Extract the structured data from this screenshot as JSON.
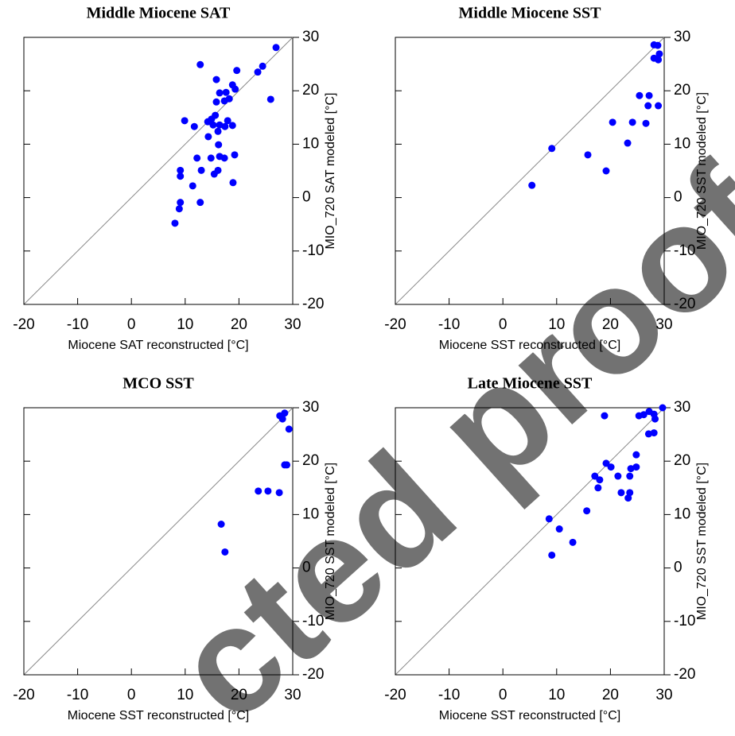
{
  "chart_data": [
    {
      "type": "scatter",
      "title": "Middle Miocene SAT",
      "xlabel": "Miocene SAT reconstructed [°C]",
      "ylabel": "MIO_720 SAT modeled [°C]",
      "color": "#0000ff",
      "diagonal": true,
      "xlim": [
        -20,
        30
      ],
      "ylim": [
        -20,
        30
      ],
      "xticks": [
        -20,
        -10,
        0,
        10,
        20,
        30
      ],
      "yticks": [
        -20,
        -10,
        0,
        10,
        20,
        30
      ],
      "x": [
        26.9,
        24.4,
        23.5,
        12.8,
        19.6,
        9.9,
        11.7,
        14.2,
        15.8,
        16.4,
        17.6,
        18.8,
        19.3,
        18.2,
        17.3,
        15.8,
        15.6,
        14.9,
        15.2,
        16.4,
        17.4,
        18.8,
        16.1,
        14.3,
        17.9,
        25.9,
        16.2,
        19.2,
        16.4,
        12.2,
        14.8,
        17.3,
        13.0,
        16.1,
        15.4,
        9.1,
        9.1,
        11.4,
        18.9,
        12.8,
        9.1,
        8.9,
        8.1
      ],
      "y": [
        28.1,
        24.6,
        23.5,
        24.9,
        23.8,
        14.4,
        13.3,
        14.2,
        22.1,
        19.6,
        19.7,
        21.1,
        20.3,
        18.5,
        18.1,
        17.9,
        15.4,
        14.7,
        13.6,
        13.6,
        13.3,
        13.5,
        12.4,
        11.4,
        14.4,
        18.4,
        9.9,
        8.0,
        7.7,
        7.4,
        7.4,
        7.4,
        5.1,
        5.1,
        4.4,
        5.1,
        4.0,
        2.2,
        2.8,
        -0.9,
        -0.9,
        -2.1,
        -4.8
      ]
    },
    {
      "type": "scatter",
      "title": "Middle Miocene SST",
      "xlabel": "Miocene SST reconstructed [°C]",
      "ylabel": "MIO_720 SST modeled [°C]",
      "color": "#0000ff",
      "diagonal": true,
      "xlim": [
        -20,
        30
      ],
      "ylim": [
        -20,
        30
      ],
      "xticks": [
        -20,
        -10,
        0,
        10,
        20,
        30
      ],
      "yticks": [
        -20,
        -10,
        0,
        10,
        20,
        30
      ],
      "x": [
        28.1,
        28.8,
        29.1,
        28.1,
        28.9,
        25.4,
        27.2,
        27.0,
        28.9,
        20.4,
        24.1,
        26.6,
        23.2,
        9.1,
        15.8,
        19.2,
        5.4
      ],
      "y": [
        28.6,
        28.5,
        26.9,
        26.1,
        25.8,
        19.1,
        19.1,
        17.2,
        17.2,
        14.1,
        14.1,
        13.9,
        10.2,
        9.2,
        8.0,
        5.0,
        2.3
      ]
    },
    {
      "type": "scatter",
      "title": "MCO SST",
      "xlabel": "Miocene SST reconstructed [°C]",
      "ylabel": "MIO_720 SST modeled [°C]",
      "color": "#0000ff",
      "diagonal": true,
      "xlim": [
        -20,
        30
      ],
      "ylim": [
        -20,
        30
      ],
      "xticks": [
        -20,
        -10,
        0,
        10,
        20,
        30
      ],
      "yticks": [
        -20,
        -10,
        0,
        10,
        20,
        30
      ],
      "x": [
        27.6,
        28.5,
        28.1,
        29.3,
        28.5,
        28.9,
        23.6,
        25.4,
        27.5,
        16.7,
        17.4
      ],
      "y": [
        28.5,
        29.0,
        27.9,
        26.0,
        19.3,
        19.3,
        14.4,
        14.4,
        14.1,
        8.2,
        3.0
      ]
    },
    {
      "type": "scatter",
      "title": "Late Miocene SST",
      "xlabel": "Miocene SST reconstructed [°C]",
      "ylabel": "MIO_720 SST modeled [°C]",
      "color": "#0000ff",
      "diagonal": true,
      "xlim": [
        -20,
        30
      ],
      "ylim": [
        -20,
        30
      ],
      "xticks": [
        -20,
        -10,
        0,
        10,
        20,
        30
      ],
      "yticks": [
        -20,
        -10,
        0,
        10,
        20,
        30
      ],
      "x": [
        29.7,
        18.9,
        25.3,
        26.2,
        27.2,
        28.1,
        28.3,
        27.1,
        28.1,
        24.8,
        19.2,
        20.1,
        24.8,
        23.8,
        17.1,
        21.4,
        23.6,
        18.0,
        17.7,
        22.0,
        23.6,
        23.3,
        15.6,
        8.6,
        10.5,
        13.0,
        9.1
      ],
      "y": [
        30.0,
        28.5,
        28.5,
        28.7,
        29.3,
        28.8,
        27.9,
        25.1,
        25.3,
        21.2,
        19.6,
        18.9,
        18.9,
        18.6,
        17.2,
        17.2,
        17.2,
        16.5,
        15.0,
        14.1,
        14.1,
        13.1,
        10.7,
        9.2,
        7.3,
        4.8,
        2.4
      ]
    }
  ],
  "watermark": "cted proof"
}
